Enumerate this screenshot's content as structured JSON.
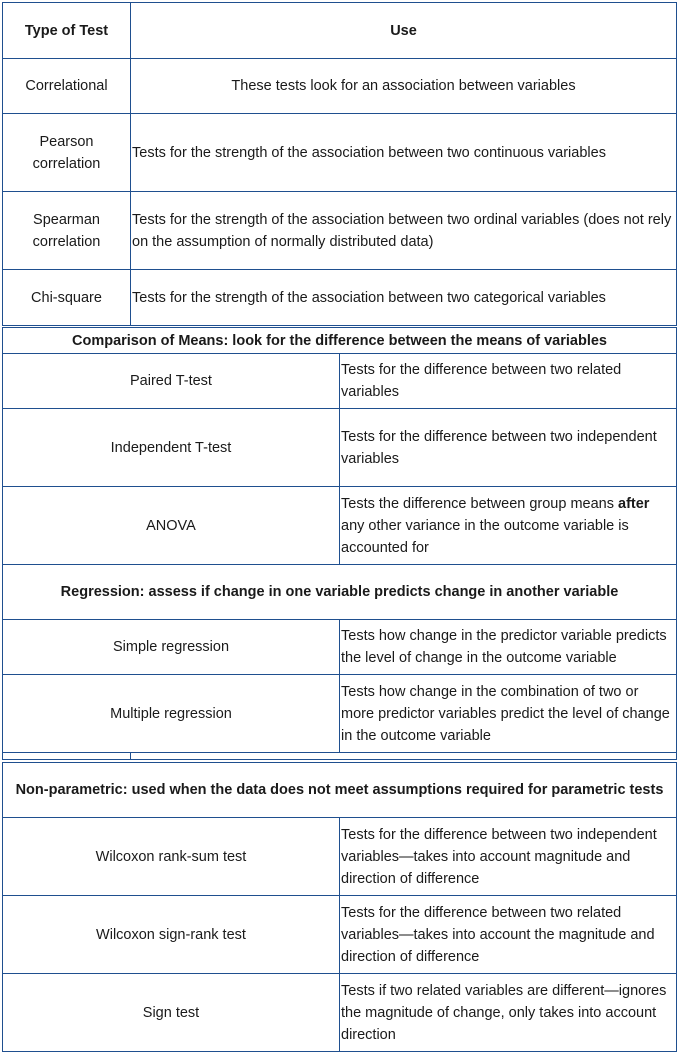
{
  "header": {
    "col1": "Type of Test",
    "col2": "Use"
  },
  "correlational": {
    "label": "Correlational",
    "use": "These tests look for an association between variables",
    "rows": [
      {
        "test": "Pearson correlation",
        "use": "Tests for the strength of the association between two continuous variables"
      },
      {
        "test": "Spearman correlation",
        "use": "Tests for the strength of the association between two ordinal variables (does not rely on the assumption of normally distributed data)"
      },
      {
        "test": "Chi-square",
        "use": "Tests for the strength of the association between two categorical variables"
      }
    ]
  },
  "means": {
    "title": "Comparison of Means: look for the difference between the means of variables",
    "rows": [
      {
        "test": "Paired T-test",
        "use": "Tests for the difference between two related variables"
      },
      {
        "test": "Independent T-test",
        "use": "Tests for the difference between two independent variables"
      }
    ],
    "anova": {
      "test": "ANOVA",
      "use_before": "Tests the difference between group means ",
      "use_bold": "after",
      "use_after": " any other variance in the outcome variable is accounted for"
    }
  },
  "regression": {
    "title": "Regression: assess if change in one variable predicts change in another variable",
    "rows": [
      {
        "test": "Simple regression",
        "use": "Tests how change in the predictor variable predicts the level of change in the outcome variable"
      },
      {
        "test": "Multiple regression",
        "use": "Tests how change in the combination of two or more predictor variables predict the level of change in the outcome variable"
      }
    ]
  },
  "nonparametric": {
    "title": "Non-parametric: used when the data does not meet assumptions required for parametric tests",
    "rows": [
      {
        "test": "Wilcoxon rank-sum test",
        "use": "Tests for the difference between two independent variables—takes into account magnitude and direction of difference"
      },
      {
        "test": "Wilcoxon sign-rank test",
        "use": "Tests for the difference between two related variables—takes into account the magnitude and direction of difference"
      },
      {
        "test": "Sign test",
        "use": "Tests if two related variables are different—ignores the magnitude of change, only takes into account direction"
      }
    ]
  }
}
